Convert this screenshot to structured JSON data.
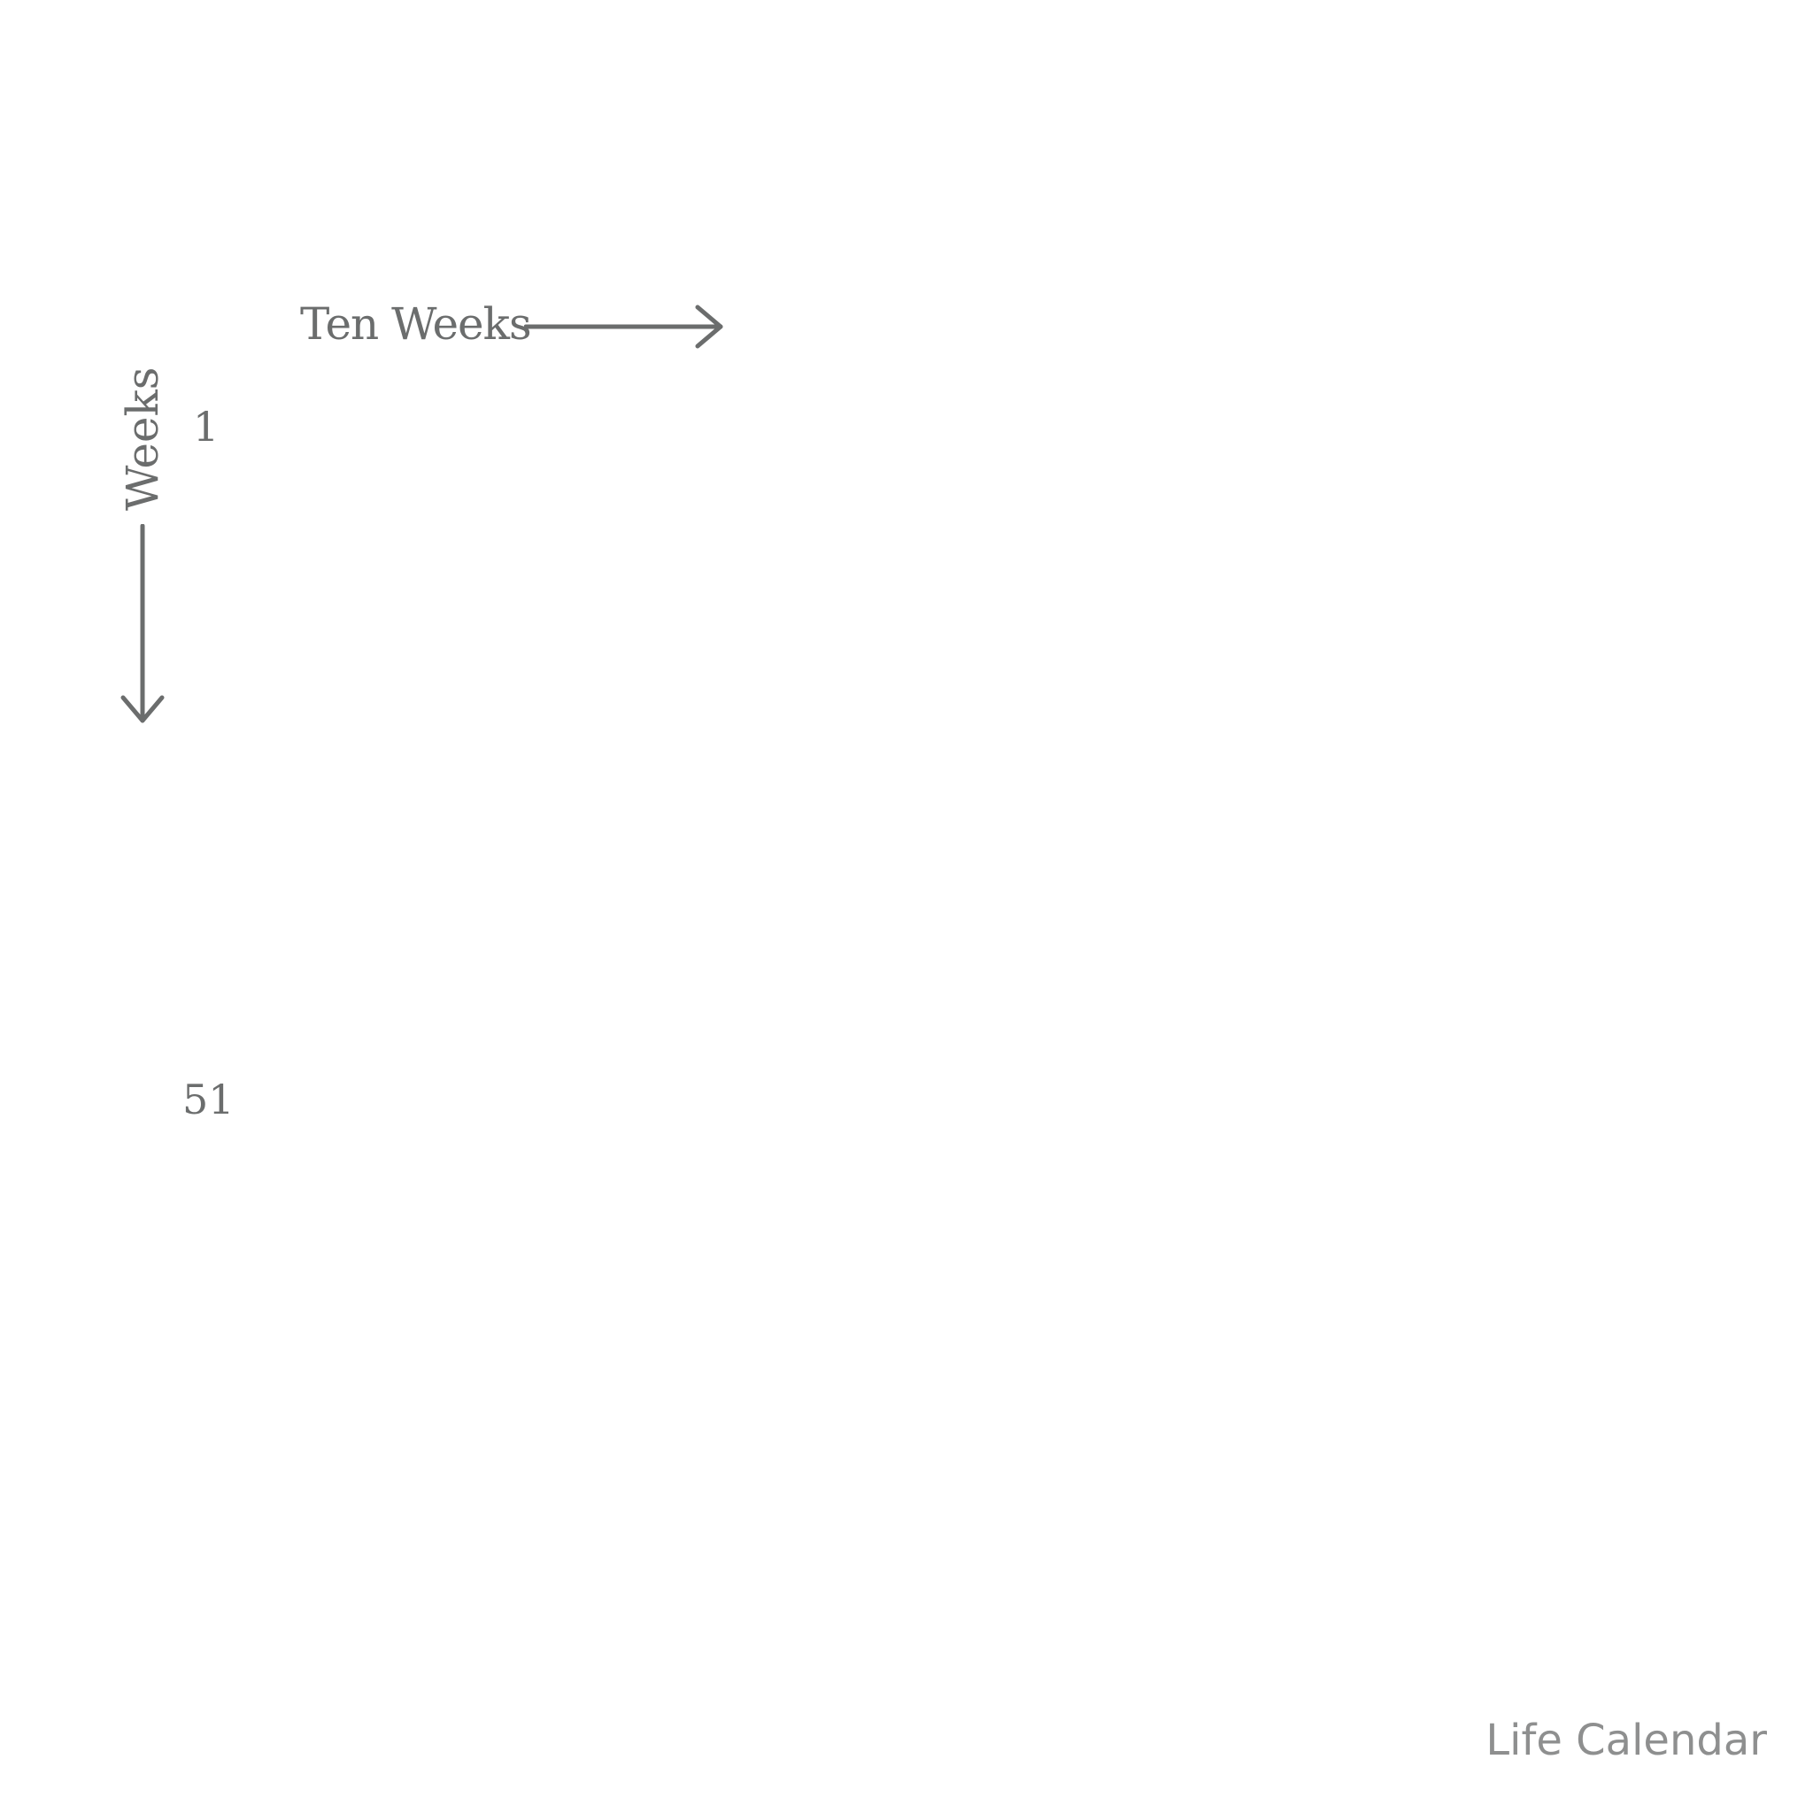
{
  "axes": {
    "horizontal_label": "Ten Weeks",
    "vertical_label": "Weeks"
  },
  "row_numbers": {
    "first": "1",
    "last": "51"
  },
  "footer": {
    "title": "Life Calendar"
  },
  "icons": {
    "horizontal_arrow": "arrow-right-icon",
    "vertical_arrow": "arrow-down-icon"
  },
  "colors": {
    "background": "#ffffff",
    "label_text": "#6b6d6d",
    "footer_text": "#8e8f8f",
    "arrow_stroke": "#6b6d6d"
  }
}
